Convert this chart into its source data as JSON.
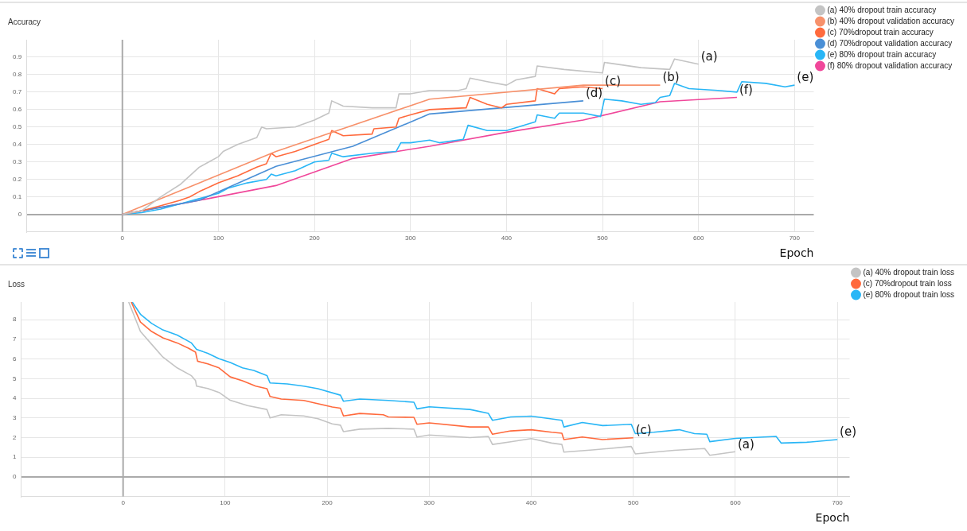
{
  "chart_data": [
    {
      "type": "line",
      "title": "Accuracy",
      "xlabel": "Epoch",
      "xlim": [
        -100,
        720
      ],
      "xticks": [
        0,
        100,
        200,
        300,
        400,
        500,
        600,
        700
      ],
      "ylim": [
        -0.1,
        1.0
      ],
      "yticks": [
        0,
        0.1,
        0.2,
        0.3,
        0.4,
        0.5,
        0.6,
        0.7,
        0.8,
        0.9
      ],
      "grid": true,
      "legend": "top right",
      "series": [
        {
          "name": "(a) 40% dropout train accuracy",
          "color": "#c4c4c4",
          "x": [
            0,
            20,
            40,
            60,
            70,
            80,
            90,
            100,
            105,
            120,
            140,
            145,
            150,
            180,
            200,
            215,
            218,
            230,
            260,
            285,
            288,
            300,
            320,
            350,
            358,
            362,
            380,
            400,
            410,
            430,
            432,
            460,
            500,
            502,
            540,
            570,
            575,
            600
          ],
          "values": [
            0,
            0.02,
            0.1,
            0.17,
            0.22,
            0.27,
            0.3,
            0.33,
            0.36,
            0.4,
            0.44,
            0.5,
            0.49,
            0.5,
            0.54,
            0.58,
            0.65,
            0.62,
            0.61,
            0.61,
            0.69,
            0.69,
            0.71,
            0.71,
            0.72,
            0.78,
            0.76,
            0.74,
            0.77,
            0.79,
            0.85,
            0.83,
            0.81,
            0.87,
            0.84,
            0.83,
            0.89,
            0.86
          ]
        },
        {
          "name": "(b) 40% dropout validation accuracy",
          "color": "#f7916b",
          "x": [
            0,
            160,
            320,
            480,
            560
          ],
          "values": [
            0,
            0.36,
            0.66,
            0.74,
            0.74
          ]
        },
        {
          "name": "(c) 70%dropout train accuracy",
          "color": "#ff6a3d",
          "x": [
            0,
            20,
            40,
            60,
            70,
            80,
            100,
            120,
            140,
            150,
            155,
            160,
            180,
            200,
            215,
            218,
            230,
            260,
            262,
            285,
            288,
            300,
            320,
            358,
            362,
            380,
            395,
            400,
            430,
            432,
            450,
            455,
            480,
            500
          ],
          "values": [
            0,
            0.02,
            0.05,
            0.08,
            0.1,
            0.13,
            0.18,
            0.22,
            0.27,
            0.29,
            0.35,
            0.33,
            0.36,
            0.4,
            0.43,
            0.48,
            0.45,
            0.46,
            0.49,
            0.5,
            0.55,
            0.57,
            0.6,
            0.61,
            0.67,
            0.63,
            0.61,
            0.63,
            0.65,
            0.72,
            0.69,
            0.72,
            0.73,
            0.72
          ]
        },
        {
          "name": "(d) 70%dropout validation accuracy",
          "color": "#4a8fd6",
          "x": [
            0,
            80,
            160,
            240,
            320,
            480
          ],
          "values": [
            0,
            0.08,
            0.275,
            0.39,
            0.575,
            0.65
          ]
        },
        {
          "name": "(e) 80% dropout train accuracy",
          "color": "#29b6f6",
          "x": [
            0,
            20,
            40,
            60,
            80,
            100,
            110,
            130,
            150,
            155,
            160,
            180,
            200,
            215,
            218,
            230,
            260,
            285,
            290,
            300,
            320,
            330,
            355,
            360,
            380,
            400,
            430,
            432,
            450,
            455,
            480,
            498,
            502,
            520,
            540,
            555,
            560,
            570,
            575,
            590,
            620,
            640,
            645,
            670,
            690,
            700
          ],
          "values": [
            0,
            0.01,
            0.03,
            0.06,
            0.09,
            0.12,
            0.15,
            0.18,
            0.2,
            0.23,
            0.22,
            0.25,
            0.3,
            0.31,
            0.35,
            0.33,
            0.35,
            0.36,
            0.41,
            0.41,
            0.425,
            0.41,
            0.43,
            0.51,
            0.48,
            0.48,
            0.53,
            0.57,
            0.55,
            0.58,
            0.58,
            0.56,
            0.66,
            0.65,
            0.63,
            0.64,
            0.67,
            0.68,
            0.75,
            0.72,
            0.71,
            0.7,
            0.76,
            0.75,
            0.73,
            0.74
          ]
        },
        {
          "name": "(f) 80% dropout validation accuracy",
          "color": "#f0479a",
          "x": [
            0,
            80,
            160,
            240,
            320,
            400,
            480,
            560,
            640
          ],
          "values": [
            0,
            0.08,
            0.165,
            0.32,
            0.39,
            0.47,
            0.54,
            0.645,
            0.67
          ]
        }
      ],
      "annotations": [
        {
          "text": "(a)",
          "x": 600,
          "y": 0.86
        },
        {
          "text": "(b)",
          "x": 560,
          "y": 0.74
        },
        {
          "text": "(c)",
          "x": 500,
          "y": 0.72
        },
        {
          "text": "(d)",
          "x": 480,
          "y": 0.65
        },
        {
          "text": "(e)",
          "x": 700,
          "y": 0.74
        },
        {
          "text": "(f)",
          "x": 640,
          "y": 0.67
        }
      ]
    },
    {
      "type": "line",
      "title": "Loss",
      "xlabel": "Epoch",
      "xlim": [
        -100,
        712
      ],
      "xticks": [
        0,
        100,
        200,
        300,
        400,
        500,
        600,
        700
      ],
      "ylim": [
        -1,
        8.9
      ],
      "yticks": [
        0,
        1,
        2,
        3,
        4,
        5,
        6,
        7,
        8
      ],
      "grid": true,
      "legend": "top right",
      "series": [
        {
          "name": "(a) 40% dropout train loss",
          "color": "#c4c4c4",
          "x": [
            5.5,
            17,
            28,
            39,
            53,
            67,
            71,
            72,
            83,
            94,
            105,
            122,
            141,
            144,
            155,
            177,
            191,
            205,
            213,
            216,
            232,
            260,
            285,
            288,
            300,
            340,
            358,
            362,
            380,
            400,
            420,
            430,
            432,
            460,
            498,
            502,
            540,
            570,
            575,
            600
          ],
          "values": [
            8.9,
            7.4,
            6.75,
            6.1,
            5.55,
            5.15,
            4.9,
            4.62,
            4.5,
            4.3,
            3.9,
            3.63,
            3.43,
            3.0,
            3.16,
            3.1,
            2.96,
            2.7,
            2.63,
            2.3,
            2.43,
            2.47,
            2.43,
            2.03,
            2.13,
            2.0,
            2.06,
            1.65,
            1.79,
            1.95,
            1.72,
            1.65,
            1.26,
            1.37,
            1.55,
            1.17,
            1.35,
            1.44,
            1.1,
            1.28
          ]
        },
        {
          "name": "(c) 70%dropout train loss",
          "color": "#ff6a3d",
          "x": [
            8,
            17,
            28,
            39,
            53,
            64,
            71,
            73,
            83,
            94,
            105,
            117,
            130,
            141,
            144,
            155,
            177,
            188,
            205,
            213,
            216,
            232,
            255,
            260,
            285,
            288,
            300,
            340,
            358,
            362,
            380,
            400,
            420,
            430,
            432,
            450,
            470,
            500
          ],
          "values": [
            8.9,
            7.88,
            7.4,
            7.08,
            6.82,
            6.55,
            6.35,
            5.89,
            5.75,
            5.55,
            5.09,
            4.89,
            4.62,
            4.49,
            4.09,
            3.96,
            3.89,
            3.76,
            3.56,
            3.5,
            3.1,
            3.23,
            3.16,
            3.05,
            3.03,
            2.68,
            2.75,
            2.54,
            2.54,
            2.17,
            2.34,
            2.4,
            2.27,
            2.22,
            1.9,
            2.03,
            1.9,
            1.99
          ]
        },
        {
          "name": "(e) 80% dropout train loss",
          "color": "#29b6f6",
          "x": [
            9,
            17,
            28,
            39,
            53,
            67,
            72,
            83,
            94,
            105,
            117,
            128,
            141,
            144,
            161,
            177,
            191,
            213,
            216,
            232,
            260,
            285,
            288,
            300,
            340,
            358,
            362,
            380,
            400,
            420,
            430,
            432,
            450,
            470,
            498,
            502,
            520,
            545,
            560,
            572,
            575,
            600,
            640,
            645,
            670,
            700
          ],
          "values": [
            8.9,
            8.28,
            7.81,
            7.48,
            7.22,
            6.82,
            6.49,
            6.29,
            6.02,
            5.82,
            5.55,
            5.42,
            5.16,
            4.78,
            4.73,
            4.62,
            4.49,
            4.16,
            3.85,
            3.96,
            3.89,
            3.8,
            3.46,
            3.57,
            3.43,
            3.23,
            2.88,
            3.05,
            3.09,
            2.95,
            2.88,
            2.54,
            2.77,
            2.61,
            2.68,
            2.2,
            2.27,
            2.4,
            2.2,
            2.17,
            1.79,
            1.96,
            2.06,
            1.72,
            1.76,
            1.9
          ]
        }
      ],
      "annotations": [
        {
          "text": "(c)",
          "x": 500,
          "y": 1.99
        },
        {
          "text": "(e)",
          "x": 700,
          "y": 1.9
        },
        {
          "text": "(a)",
          "x": 600,
          "y": 1.28
        }
      ]
    }
  ]
}
